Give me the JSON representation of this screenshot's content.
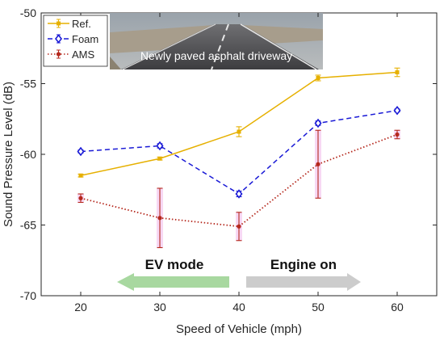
{
  "chart_data": {
    "type": "line",
    "xlabel": "Speed of Vehicle (mph)",
    "ylabel": "Sound Pressure Level (dB)",
    "xlim": [
      15,
      65
    ],
    "ylim": [
      -70,
      -50
    ],
    "xticks": [
      20,
      30,
      40,
      50,
      60
    ],
    "yticks": [
      -70,
      -65,
      -60,
      -55,
      -50
    ],
    "grid": false,
    "legend": "top-left",
    "x": [
      20,
      30,
      40,
      50,
      60
    ],
    "series": [
      {
        "name": "Ref.",
        "color": "#e6b000",
        "line": "solid",
        "marker": "square",
        "values": [
          -61.5,
          -60.3,
          -58.4,
          -54.6,
          -54.2
        ],
        "errors": [
          0.1,
          0.1,
          0.35,
          0.2,
          0.3
        ]
      },
      {
        "name": "Foam",
        "color": "#1a1ad6",
        "line": "dashed",
        "marker": "diamond",
        "values": [
          -59.8,
          -59.4,
          -62.8,
          -57.8,
          -56.9
        ],
        "errors": [
          0.1,
          0.15,
          0.2,
          0.15,
          0.1
        ]
      },
      {
        "name": "AMS",
        "color": "#b5281d",
        "line": "dotted",
        "marker": "dot",
        "values": [
          -63.1,
          -64.5,
          -65.1,
          -60.7,
          -58.6
        ],
        "errors": [
          0.3,
          2.1,
          1.0,
          2.4,
          0.3
        ]
      }
    ],
    "annotations": {
      "photo_caption": "Newly paved asphalt driveway",
      "ev_mode": "EV mode",
      "engine_on": "Engine on",
      "ev_arrow_color": "#a8d8a0",
      "engine_arrow_color": "#cccccc"
    }
  }
}
